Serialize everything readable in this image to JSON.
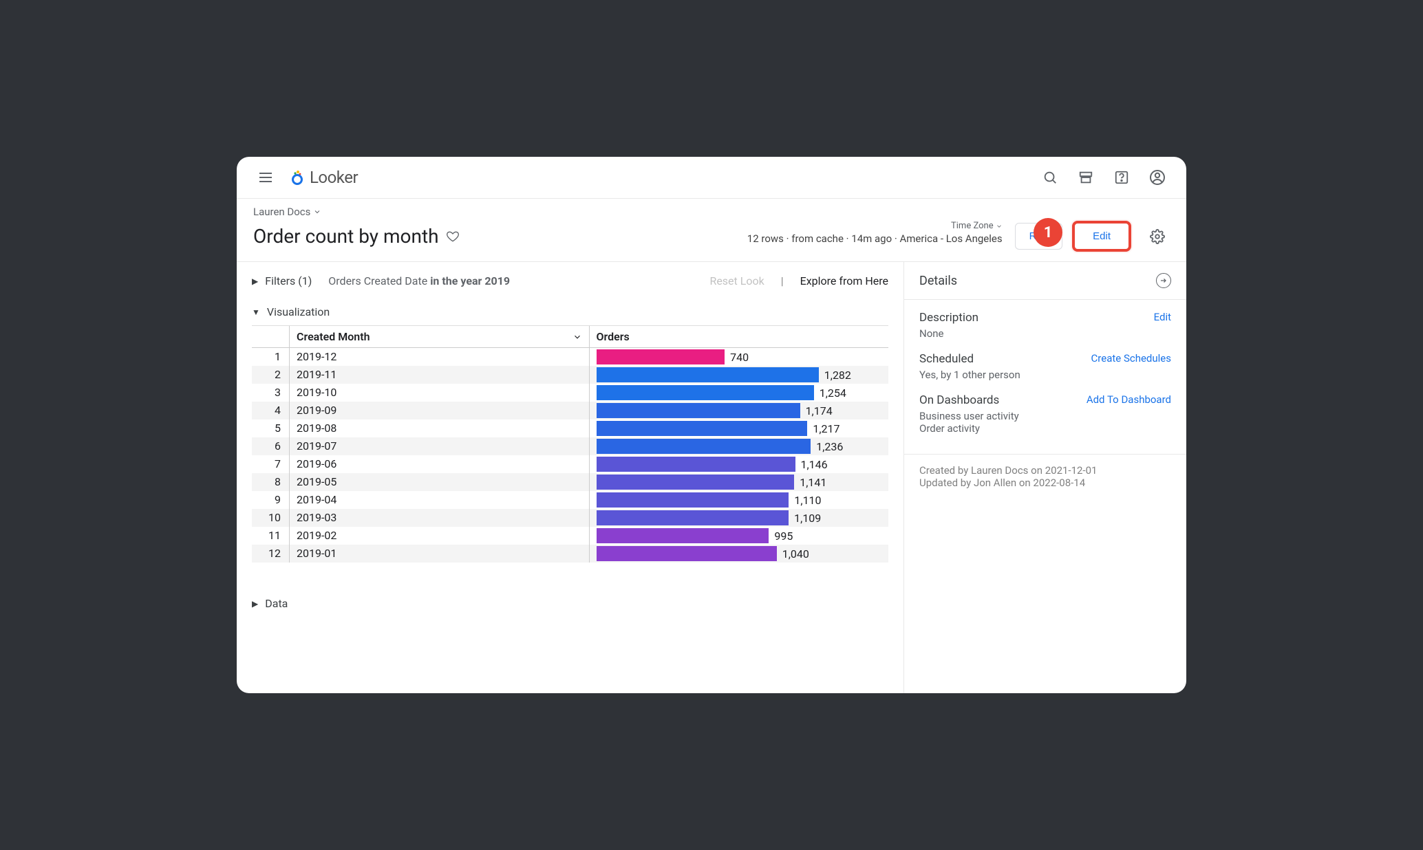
{
  "app_name": "Looker",
  "breadcrumb": "Lauren Docs",
  "page_title": "Order count by month",
  "timezone_label": "Time Zone",
  "meta_line": "12 rows · from cache · 14m ago · America - Los Angeles",
  "run_button": "Run",
  "edit_button": "Edit",
  "annotation_badge": "1",
  "filters": {
    "label": "Filters (1)",
    "description_prefix": "Orders Created Date ",
    "description_bold": "in the year 2019",
    "reset": "Reset Look",
    "explore": "Explore from Here"
  },
  "viz_label": "Visualization",
  "data_label": "Data",
  "table": {
    "col_month": "Created Month",
    "col_orders": "Orders",
    "max_value": 1282,
    "rows": [
      {
        "idx": "1",
        "month": "2019-12",
        "value": 740,
        "label": "740",
        "color": "#e91e82"
      },
      {
        "idx": "2",
        "month": "2019-11",
        "value": 1282,
        "label": "1,282",
        "color": "#1e72e8"
      },
      {
        "idx": "3",
        "month": "2019-10",
        "value": 1254,
        "label": "1,254",
        "color": "#1e72e8"
      },
      {
        "idx": "4",
        "month": "2019-09",
        "value": 1174,
        "label": "1,174",
        "color": "#2a66e3"
      },
      {
        "idx": "5",
        "month": "2019-08",
        "value": 1217,
        "label": "1,217",
        "color": "#2a66e3"
      },
      {
        "idx": "6",
        "month": "2019-07",
        "value": 1236,
        "label": "1,236",
        "color": "#2a66e3"
      },
      {
        "idx": "7",
        "month": "2019-06",
        "value": 1146,
        "label": "1,146",
        "color": "#5a55d6"
      },
      {
        "idx": "8",
        "month": "2019-05",
        "value": 1141,
        "label": "1,141",
        "color": "#5a55d6"
      },
      {
        "idx": "9",
        "month": "2019-04",
        "value": 1110,
        "label": "1,110",
        "color": "#5a55d6"
      },
      {
        "idx": "10",
        "month": "2019-03",
        "value": 1109,
        "label": "1,109",
        "color": "#5a55d6"
      },
      {
        "idx": "11",
        "month": "2019-02",
        "value": 995,
        "label": "995",
        "color": "#8a3fcf"
      },
      {
        "idx": "12",
        "month": "2019-01",
        "value": 1040,
        "label": "1,040",
        "color": "#8a3fcf"
      }
    ]
  },
  "details": {
    "heading": "Details",
    "description_label": "Description",
    "description_value": "None",
    "description_edit": "Edit",
    "scheduled_label": "Scheduled",
    "scheduled_value": "Yes, by 1 other person",
    "scheduled_link": "Create Schedules",
    "dashboards_label": "On Dashboards",
    "dashboards_link": "Add To Dashboard",
    "dashboards_values": [
      "Business user activity",
      "Order activity"
    ],
    "created": "Created by Lauren Docs on 2021-12-01",
    "updated": "Updated by Jon Allen on 2022-08-14"
  }
}
